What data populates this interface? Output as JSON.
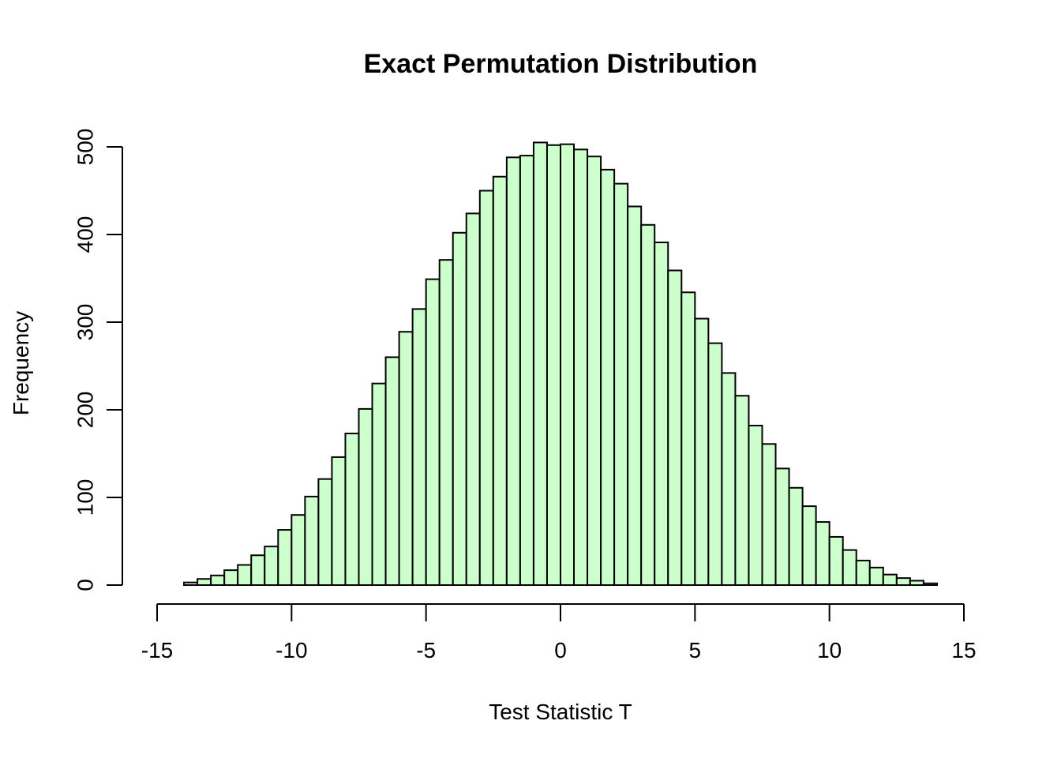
{
  "chart_data": {
    "type": "bar",
    "title": "Exact Permutation Distribution",
    "xlabel": "Test Statistic T",
    "ylabel": "Frequency",
    "xlim": [
      -15,
      15
    ],
    "ylim": [
      0,
      500
    ],
    "x_ticks": [
      -15,
      -10,
      -5,
      0,
      5,
      10,
      15
    ],
    "x_tick_labels": [
      "-15",
      "-10",
      "-5",
      "0",
      "5",
      "10",
      "15"
    ],
    "y_ticks": [
      0,
      100,
      200,
      300,
      400,
      500
    ],
    "y_tick_labels": [
      "0",
      "100",
      "200",
      "300",
      "400",
      "500"
    ],
    "grid": false,
    "legend": "none",
    "bar_color": "#ccffcc",
    "bar_edge_color": "#000000",
    "bin_width": 0.5,
    "bin_start": -14,
    "bin_end": 14,
    "values": [
      3,
      7,
      11,
      17,
      23,
      34,
      44,
      63,
      80,
      101,
      121,
      146,
      173,
      201,
      230,
      260,
      289,
      315,
      349,
      371,
      402,
      424,
      450,
      466,
      488,
      490,
      505,
      502,
      503,
      497,
      489,
      474,
      458,
      432,
      411,
      391,
      359,
      334,
      304,
      276,
      242,
      216,
      182,
      161,
      133,
      111,
      90,
      72,
      55,
      40,
      28,
      20,
      12,
      8,
      5,
      2
    ]
  }
}
